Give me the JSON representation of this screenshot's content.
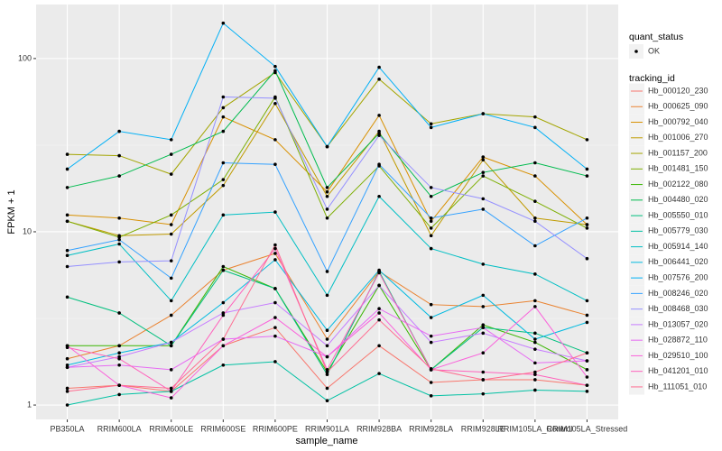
{
  "chart_data": {
    "type": "line",
    "x_label": "sample_name",
    "y_label": "FPKM + 1",
    "categories": [
      "PB350LA",
      "RRIM600LA",
      "RRIM600LE",
      "RRIM600SE",
      "RRIM600PE",
      "RRIM901LA",
      "RRIM928BA",
      "RRIM928LA",
      "RRIM928LE",
      "RRIM105LA_Control",
      "RRIM105LA_Stressed"
    ],
    "log_y": true,
    "ylim": [
      0.826,
      205
    ],
    "yticks": [
      1,
      10,
      100
    ],
    "grid": true,
    "point_color": "#000000",
    "legend_position": "right",
    "shape_legend": {
      "title": "quant_status",
      "labels": [
        "OK"
      ]
    },
    "color_legend_title": "tracking_id",
    "series": [
      {
        "name": "Hb_000120_230",
        "color": "#F8766D",
        "values": [
          1.25,
          1.3,
          1.2,
          2.2,
          2.8,
          1.25,
          2.2,
          1.35,
          1.4,
          1.4,
          1.3
        ]
      },
      {
        "name": "Hb_000625_090",
        "color": "#EA8331",
        "values": [
          1.85,
          2.2,
          3.3,
          6,
          7.5,
          2.4,
          5.9,
          3.8,
          3.7,
          4.0,
          3.3
        ]
      },
      {
        "name": "Hb_000792_040",
        "color": "#D89000",
        "values": [
          12.5,
          12,
          11,
          46,
          34,
          17,
          47,
          11.5,
          27,
          21,
          11
        ]
      },
      {
        "name": "Hb_001006_270",
        "color": "#C09B00",
        "values": [
          11.5,
          9.5,
          9.7,
          18.5,
          55,
          16,
          38,
          9.5,
          26,
          12,
          11
        ]
      },
      {
        "name": "Hb_001157_200",
        "color": "#A3A500",
        "values": [
          28,
          27.5,
          21.5,
          52,
          83,
          31,
          76,
          42,
          48,
          46,
          34
        ]
      },
      {
        "name": "Hb_001481_150",
        "color": "#7CAE00",
        "values": [
          11.5,
          9.3,
          12.5,
          20,
          60,
          12,
          24,
          10.5,
          21,
          15,
          10.5
        ]
      },
      {
        "name": "Hb_002122_080",
        "color": "#39B600",
        "values": [
          2.2,
          2.2,
          2.2,
          6.3,
          4.7,
          1.55,
          4.9,
          1.6,
          2.9,
          2.3,
          1.6
        ]
      },
      {
        "name": "Hb_004480_020",
        "color": "#00BB4E",
        "values": [
          18,
          21,
          28,
          38,
          85,
          18,
          37,
          16,
          22,
          25,
          21
        ]
      },
      {
        "name": "Hb_005550_010",
        "color": "#00BF7D",
        "values": [
          4.2,
          3.4,
          2.2,
          6,
          4.7,
          1.5,
          5.9,
          1.6,
          2.8,
          2.6,
          2.0
        ]
      },
      {
        "name": "Hb_005779_030",
        "color": "#00C1A3",
        "values": [
          1.0,
          1.15,
          1.2,
          1.7,
          1.78,
          1.06,
          1.52,
          1.13,
          1.16,
          1.22,
          1.2
        ]
      },
      {
        "name": "Hb_005914_140",
        "color": "#00BFC4",
        "values": [
          7.3,
          8.5,
          4.0,
          12.5,
          13,
          4.3,
          16,
          8,
          6.5,
          5.7,
          4.0
        ]
      },
      {
        "name": "Hb_006441_020",
        "color": "#00BAE0",
        "values": [
          1.7,
          2.0,
          2.3,
          3.9,
          6.9,
          2.7,
          6.0,
          3.2,
          4.3,
          2.4,
          3.0
        ]
      },
      {
        "name": "Hb_007576_200",
        "color": "#00B0F6",
        "values": [
          23,
          38,
          34,
          160,
          90,
          31,
          89,
          40,
          48,
          40,
          23
        ]
      },
      {
        "name": "Hb_008246_020",
        "color": "#35A2FF",
        "values": [
          7.8,
          9,
          5.4,
          25,
          24.5,
          5.9,
          24.5,
          12,
          13.5,
          8.3,
          12
        ]
      },
      {
        "name": "Hb_008468_030",
        "color": "#9590FF",
        "values": [
          6.3,
          6.7,
          6.8,
          60,
          59,
          13.5,
          36,
          18,
          15.5,
          11.5,
          7.0
        ]
      },
      {
        "name": "Hb_013057_020",
        "color": "#C77CFF",
        "values": [
          1.65,
          1.9,
          2.3,
          3.4,
          3.9,
          2.2,
          4.9,
          2.3,
          2.6,
          2.1,
          1.8
        ]
      },
      {
        "name": "Hb_028872_110",
        "color": "#E76BF3",
        "values": [
          1.65,
          1.7,
          1.6,
          2.4,
          2.5,
          1.9,
          3.6,
          2.5,
          2.8,
          1.75,
          1.8
        ]
      },
      {
        "name": "Hb_029510_100",
        "color": "#FA62DB",
        "values": [
          2.2,
          1.3,
          1.1,
          2.2,
          3.2,
          1.9,
          3.4,
          1.6,
          2.0,
          3.7,
          1.45
        ]
      },
      {
        "name": "Hb_041201_010",
        "color": "#FF62BC",
        "values": [
          2.15,
          1.85,
          1.2,
          3.3,
          8.0,
          1.6,
          5.8,
          1.6,
          1.55,
          1.5,
          1.3
        ]
      },
      {
        "name": "Hb_111051_010",
        "color": "#FF6C91",
        "values": [
          1.2,
          1.3,
          1.25,
          2.4,
          8.4,
          1.55,
          3.1,
          1.62,
          1.4,
          1.55,
          2.0
        ]
      }
    ]
  }
}
